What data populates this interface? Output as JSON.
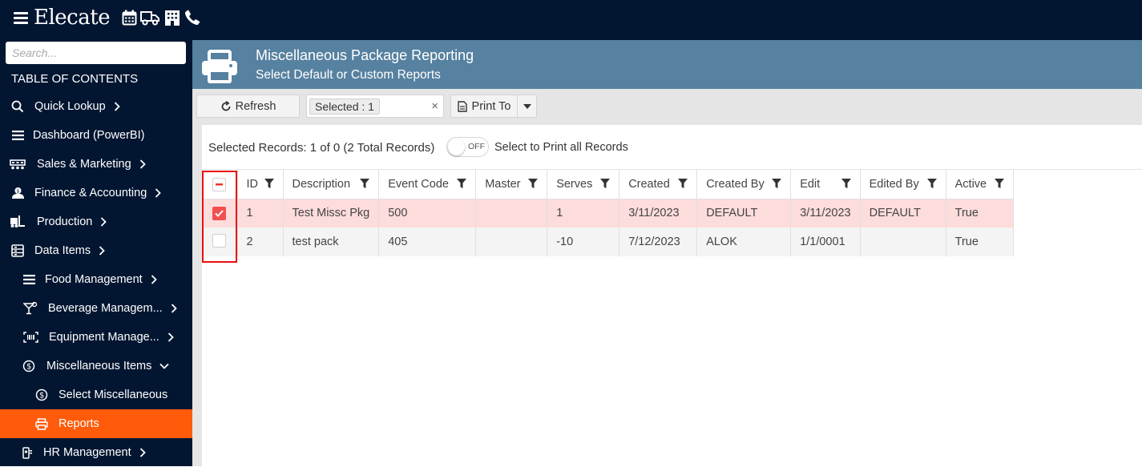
{
  "app": {
    "logo_text": "Elecate"
  },
  "topbar": {
    "icons": [
      "calendar-icon",
      "truck-icon",
      "building-icon",
      "phone-icon"
    ]
  },
  "sidebar": {
    "search_placeholder": "Search...",
    "toc_label": "TABLE OF CONTENTS",
    "items": [
      {
        "label": "Quick Lookup",
        "icon": "search-icon",
        "chevron": "right"
      },
      {
        "label": "Dashboard (PowerBI)",
        "icon": "list-icon"
      },
      {
        "label": "Sales & Marketing",
        "icon": "people-icon",
        "chevron": "right"
      },
      {
        "label": "Finance & Accounting",
        "icon": "money-icon",
        "chevron": "right"
      },
      {
        "label": "Production",
        "icon": "forklift-icon",
        "chevron": "right"
      },
      {
        "label": "Data Items",
        "icon": "database-icon",
        "chevron": "right"
      },
      {
        "label": "Food Management",
        "icon": "list-icon",
        "chevron": "right"
      },
      {
        "label": "Beverage Managem...",
        "icon": "cocktail-icon",
        "chevron": "right"
      },
      {
        "label": "Equipment Manage...",
        "icon": "barcode-icon",
        "chevron": "right"
      },
      {
        "label": "Miscellaneous Items",
        "icon": "dollar-circle-icon",
        "chevron": "down"
      },
      {
        "label": "Select Miscellaneous",
        "icon": "dollar-circle-icon"
      },
      {
        "label": "Reports",
        "icon": "printer-icon",
        "active": true
      },
      {
        "label": "HR Management",
        "icon": "id-badge-icon",
        "chevron": "right"
      }
    ]
  },
  "header": {
    "title": "Miscellaneous Package Reporting",
    "subtitle": "Select Default or Custom Reports"
  },
  "toolbar": {
    "refresh_label": "Refresh",
    "selected_tag": "Selected : 1",
    "clear_symbol": "×",
    "print_label": "Print To"
  },
  "records": {
    "summary": "Selected Records: 1 of 0 (2 Total Records)",
    "toggle_state": "OFF",
    "toggle_label": "Select to Print all Records"
  },
  "table": {
    "columns": [
      "ID",
      "Description",
      "Event Code",
      "Master",
      "Serves",
      "Created",
      "Created By",
      "Edit",
      "Edited By",
      "Active"
    ],
    "rows": [
      {
        "selected": true,
        "cells": [
          "1",
          "Test Missc Pkg",
          "500",
          "",
          "1",
          "3/11/2023",
          "DEFAULT",
          "3/11/2023",
          "DEFAULT",
          "True"
        ]
      },
      {
        "selected": false,
        "cells": [
          "2",
          "test pack",
          "405",
          "",
          "-10",
          "7/12/2023",
          "ALOK",
          "1/1/0001",
          "",
          "True"
        ]
      }
    ]
  },
  "colors": {
    "topbar": "#031631",
    "header": "#5781a0",
    "active_nav": "#ff5b0b",
    "selected_row": "#fddcdc",
    "checkbox": "#f25050",
    "highlight": "#e8100f"
  }
}
